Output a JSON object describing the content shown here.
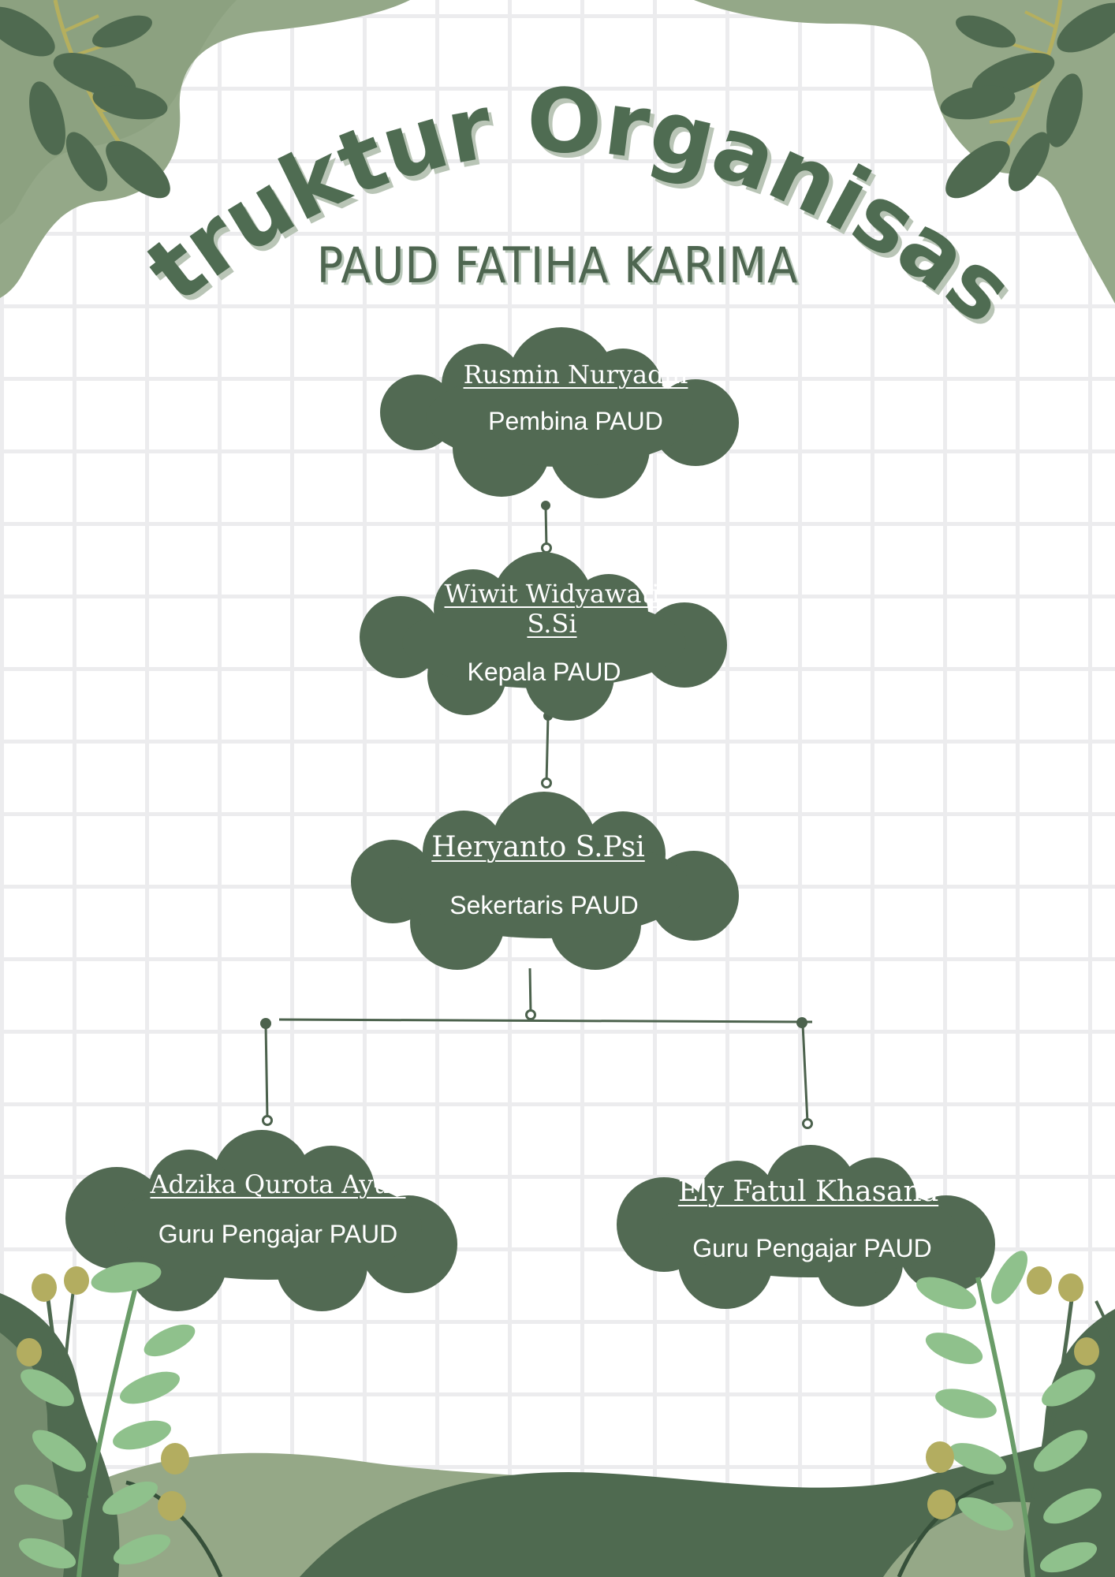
{
  "title": "Struktur Organisasi",
  "subtitle": "PAUD FATIHA KARIMA",
  "colors": {
    "cloud": "#526a53",
    "connector": "#4c624d",
    "title_fill": "#4f6c52",
    "title_shadow": "#b9c5b6",
    "leaf_dark": "#4f6a50",
    "leaf_light": "#8fc18c",
    "sage": "#95a887",
    "berry": "#b3ad60"
  },
  "nodes": [
    {
      "name": "Rusmin Nuryadin",
      "role": "Pembina PAUD"
    },
    {
      "name": "Wiwit Widyawati S.Si",
      "role": "Kepala PAUD"
    },
    {
      "name": "Heryanto S.Psi",
      "role": "Sekertaris PAUD"
    },
    {
      "name": "Adzika Qurota Ayun",
      "role": "Guru Pengajar PAUD"
    },
    {
      "name": "Ely Fatul Khasana",
      "role": "Guru Pengajar PAUD"
    }
  ]
}
